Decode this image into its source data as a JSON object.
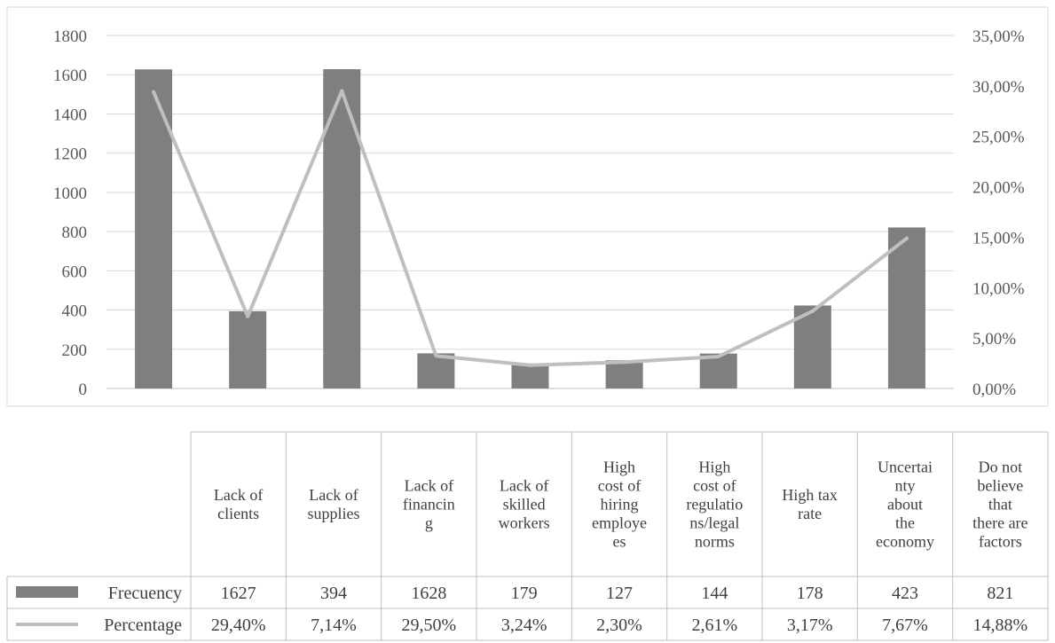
{
  "chart_data": {
    "type": "bar",
    "categories": [
      "Lack of clients",
      "Lack of supplies",
      "Lack of financing",
      "Lack of skilled workers",
      "High cost of hiring employees",
      "High cost of regulations/legal norms",
      "High tax rate",
      "Uncertainty about the economy",
      "Do not believe that there are factors"
    ],
    "category_lines": [
      [
        "Lack of",
        "clients"
      ],
      [
        "Lack of",
        "supplies"
      ],
      [
        "Lack of",
        "financin",
        "g"
      ],
      [
        "Lack of",
        "skilled",
        "workers"
      ],
      [
        "High",
        "cost of",
        "hiring",
        "employe",
        "es"
      ],
      [
        "High",
        "cost of",
        "regulatio",
        "ns/legal",
        "norms"
      ],
      [
        "High tax",
        "rate"
      ],
      [
        "Uncertai",
        "nty",
        "about",
        "the",
        "economy"
      ],
      [
        "Do not",
        "believe",
        "that",
        "there are",
        "factors"
      ]
    ],
    "series": [
      {
        "name": "Frecuency",
        "type": "bar",
        "axis": "left",
        "color": "#7f7f7f",
        "values": [
          1627,
          394,
          1628,
          179,
          127,
          144,
          178,
          423,
          821
        ]
      },
      {
        "name": "Percentage",
        "type": "line",
        "axis": "right",
        "color": "#bfbfbf",
        "values": [
          29.4,
          7.14,
          29.5,
          3.24,
          2.3,
          2.61,
          3.17,
          7.67,
          14.88
        ]
      }
    ],
    "left_axis": {
      "ylim": [
        0,
        1800
      ],
      "ticks": [
        "0",
        "200",
        "400",
        "600",
        "800",
        "1000",
        "1200",
        "1400",
        "1600",
        "1800"
      ]
    },
    "right_axis": {
      "ylim": [
        0,
        35
      ],
      "ticks": [
        "0,00%",
        "5,00%",
        "10,00%",
        "15,00%",
        "20,00%",
        "25,00%",
        "30,00%",
        "35,00%"
      ]
    },
    "table_rows": [
      {
        "label": "Frecuency",
        "values": [
          "1627",
          "394",
          "1628",
          "179",
          "127",
          "144",
          "178",
          "423",
          "821"
        ]
      },
      {
        "label": "Percentage",
        "values": [
          "29,40%",
          "7,14%",
          "29,50%",
          "3,24%",
          "2,30%",
          "2,61%",
          "3,17%",
          "7,67%",
          "14,88%"
        ]
      }
    ],
    "grid": true,
    "legend": "data-table"
  }
}
